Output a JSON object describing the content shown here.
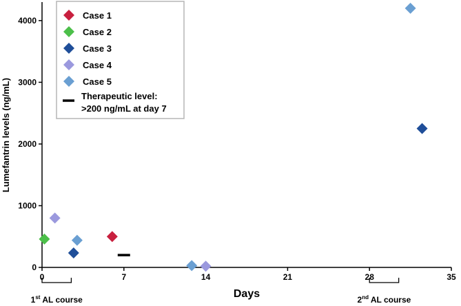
{
  "chart_data": {
    "type": "scatter",
    "title": "",
    "xlabel": "Days",
    "ylabel": "Lumefantrin levels (ng/mL)",
    "xlim": [
      0,
      35
    ],
    "ylim": [
      0,
      4300
    ],
    "x_ticks": [
      0,
      7,
      14,
      21,
      28,
      35
    ],
    "y_ticks": [
      0,
      1000,
      2000,
      3000,
      4000
    ],
    "series": [
      {
        "name": "Case 1",
        "color": "#c8203f",
        "points": [
          {
            "x": 6,
            "y": 500
          }
        ]
      },
      {
        "name": "Case 2",
        "color": "#4cbf4a",
        "points": [
          {
            "x": 0.2,
            "y": 460
          }
        ]
      },
      {
        "name": "Case 3",
        "color": "#1f4e99",
        "points": [
          {
            "x": 2.7,
            "y": 235
          },
          {
            "x": 32.5,
            "y": 2250
          }
        ]
      },
      {
        "name": "Case 4",
        "color": "#9b99de",
        "points": [
          {
            "x": 1.1,
            "y": 800
          },
          {
            "x": 14,
            "y": 20
          }
        ]
      },
      {
        "name": "Case 5",
        "color": "#6a9fd2",
        "points": [
          {
            "x": 3,
            "y": 440
          },
          {
            "x": 12.8,
            "y": 30
          },
          {
            "x": 31.5,
            "y": 4200
          }
        ]
      }
    ],
    "reference_marks": [
      {
        "label_line1": "Therapeutic level:",
        "label_line2": ">200 ng/mL at day 7",
        "x": 7,
        "y": 200
      }
    ],
    "courses": [
      {
        "label_base": "1",
        "label_sup": "st",
        "label_rest": " AL course",
        "start": 0,
        "end": 2.5
      },
      {
        "label_base": "2",
        "label_sup": "nd",
        "label_rest": " AL course",
        "start": 28,
        "end": 30.5
      }
    ],
    "legend_position": "top-left"
  }
}
